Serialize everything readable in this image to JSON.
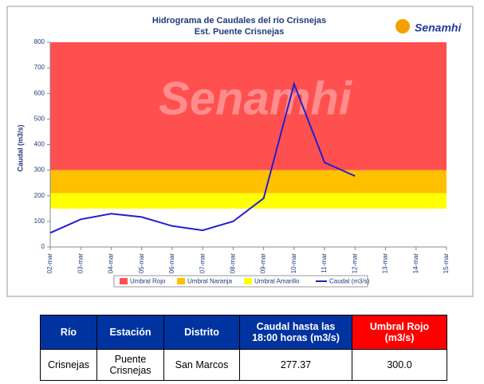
{
  "chart_data": {
    "type": "line",
    "title": "Hidrograma de Caudales del río Crisnejas",
    "subtitle": "Est. Puente Crisnejas",
    "logo": "Senamhi",
    "watermark": "Senamhi",
    "y_label": "Caudal (m3/s)",
    "categories": [
      "02-mar",
      "03-mar",
      "04-mar",
      "05-mar",
      "06-mar",
      "07-mar",
      "08-mar",
      "09-mar",
      "10-mar",
      "11-mar",
      "12-mar",
      "13-mar",
      "14-mar",
      "15-mar"
    ],
    "thresholds": [
      {
        "name": "Umbral Rojo",
        "color": "#ff5050",
        "from": 300,
        "to": 800
      },
      {
        "name": "Umbral Naranja",
        "color": "#ffc000",
        "from": 210,
        "to": 300
      },
      {
        "name": "Umbral Amarillo",
        "color": "#ffff00",
        "from": 150,
        "to": 210
      }
    ],
    "series": [
      {
        "name": "Caudal (m3/s)",
        "color": "#1f1fd0",
        "values": [
          55,
          108,
          130,
          117,
          82,
          65,
          100,
          190,
          637,
          330,
          277,
          null,
          null,
          null
        ]
      }
    ],
    "ylim": [
      0,
      800
    ],
    "yticks": [
      0,
      100,
      200,
      300,
      400,
      500,
      600,
      700,
      800
    ]
  },
  "table": {
    "header": [
      "Río",
      "Estación",
      "Distrito",
      "Caudal hasta las 18:00 horas (m3/s)",
      "Umbral Rojo (m3/s)"
    ],
    "rows": [
      [
        "Crisnejas",
        "Puente Crisnejas",
        "San Marcos",
        "277.37",
        "300.0"
      ]
    ]
  }
}
